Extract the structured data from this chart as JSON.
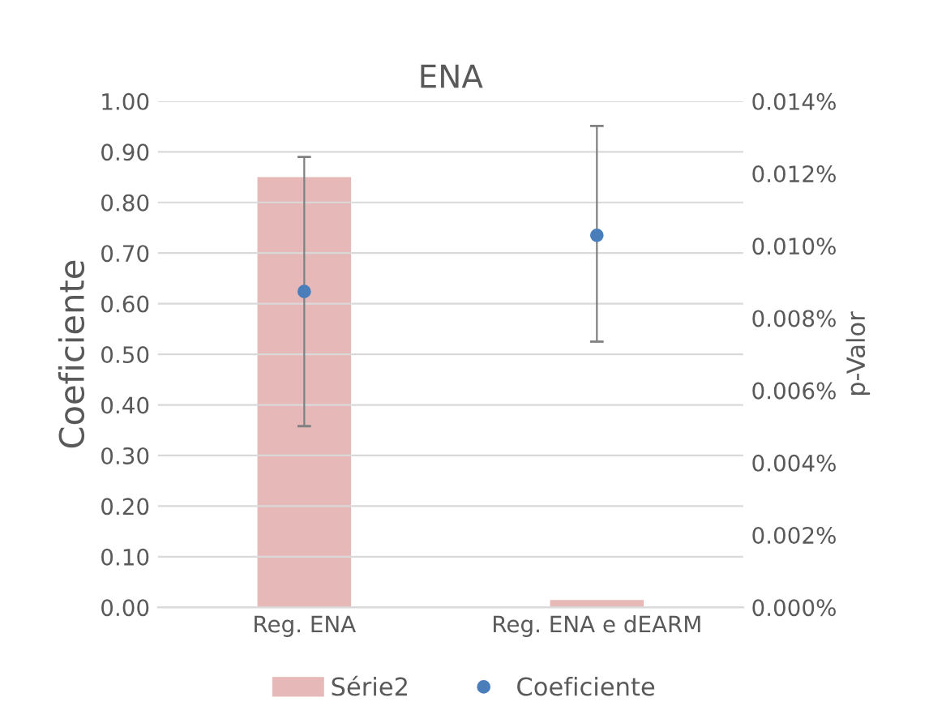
{
  "chart_data": {
    "type": "bar",
    "title": "ENA",
    "ylabel": "Coeficiente",
    "y2label": "p-Valor",
    "categories": [
      "Reg. ENA",
      "Reg. ENA e dEARM"
    ],
    "series": [
      {
        "name": "Série2",
        "axis": "y2",
        "color": "#e6b8b7",
        "values": [
          0.0119,
          0.0002
        ]
      },
      {
        "name": "Coeficiente",
        "type": "scatter",
        "axis": "y",
        "color": "#4a7ebb",
        "values": [
          0.624,
          0.735
        ],
        "errors": [
          [
            0.358,
            0.89
          ],
          [
            0.525,
            0.951
          ]
        ]
      }
    ],
    "ylim": [
      0,
      1
    ],
    "yticks": [
      {
        "value": 0,
        "label": "0.00"
      },
      {
        "value": 0.1,
        "label": "0.10"
      },
      {
        "value": 0.2,
        "label": "0.20"
      },
      {
        "value": 0.3,
        "label": "0.30"
      },
      {
        "value": 0.4,
        "label": "0.40"
      },
      {
        "value": 0.5,
        "label": "0.50"
      },
      {
        "value": 0.6,
        "label": "0.60"
      },
      {
        "value": 0.7,
        "label": "0.70"
      },
      {
        "value": 0.8,
        "label": "0.80"
      },
      {
        "value": 0.9,
        "label": "0.90"
      },
      {
        "value": 1,
        "label": "1.00"
      }
    ],
    "y2lim": [
      0,
      0.014
    ],
    "y2ticks": [
      {
        "value": 0,
        "label": "0.000%"
      },
      {
        "value": 0.002,
        "label": "0.002%"
      },
      {
        "value": 0.004,
        "label": "0.004%"
      },
      {
        "value": 0.006,
        "label": "0.006%"
      },
      {
        "value": 0.008,
        "label": "0.008%"
      },
      {
        "value": 0.01,
        "label": "0.010%"
      },
      {
        "value": 0.012,
        "label": "0.012%"
      },
      {
        "value": 0.014,
        "label": "0.014%"
      }
    ],
    "grid": "y",
    "legend": "bottom",
    "marker": "circle"
  }
}
